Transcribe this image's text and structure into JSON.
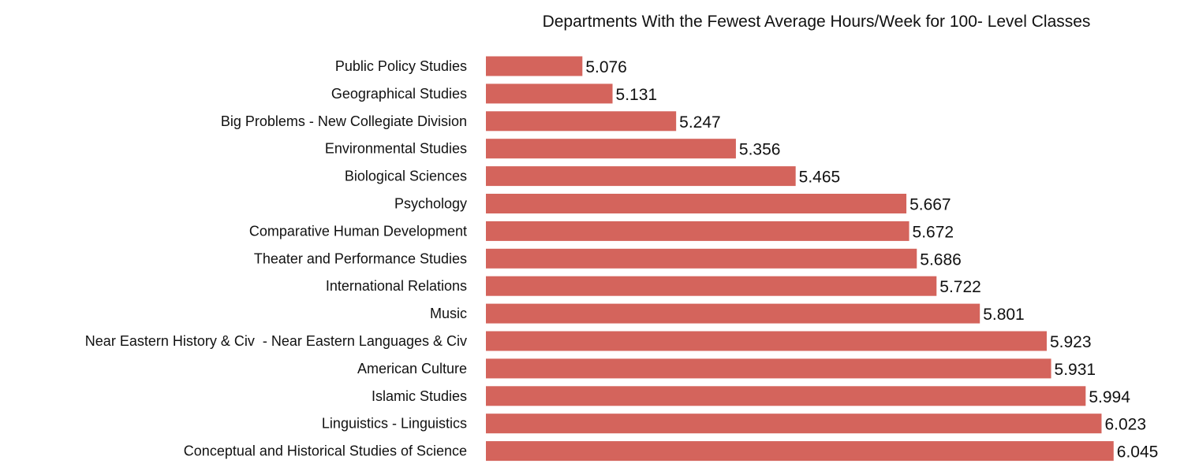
{
  "chart_data": {
    "type": "bar",
    "orientation": "horizontal",
    "title": "Departments With the Fewest Average Hours/Week for 100- Level Classes",
    "xlabel": "",
    "ylabel": "",
    "categories": [
      "Public Policy Studies",
      "Geographical Studies",
      "Big Problems - New Collegiate Division",
      "Environmental Studies",
      "Biological Sciences",
      "Psychology",
      "Comparative Human Development",
      "Theater and Performance Studies",
      "International Relations",
      "Music",
      "Near Eastern History & Civ  - Near Eastern Languages & Civ",
      "American Culture",
      "Islamic Studies",
      "Linguistics - Linguistics",
      "Conceptual and Historical Studies of Science"
    ],
    "values": [
      5.076,
      5.131,
      5.247,
      5.356,
      5.465,
      5.667,
      5.672,
      5.686,
      5.722,
      5.801,
      5.923,
      5.931,
      5.994,
      6.023,
      6.045
    ],
    "value_labels": [
      "5.076",
      "5.131",
      "5.247",
      "5.356",
      "5.465",
      "5.667",
      "5.672",
      "5.686",
      "5.722",
      "5.801",
      "5.923",
      "5.931",
      "5.994",
      "6.023",
      "6.045"
    ],
    "xlim": [
      4.9,
      6.1
    ],
    "bar_color": "#d4645c",
    "grid": false,
    "legend": "none"
  }
}
